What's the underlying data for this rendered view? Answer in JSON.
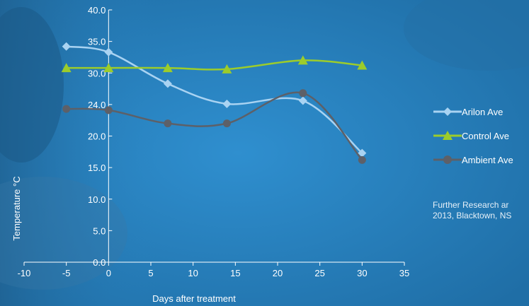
{
  "chart_data": {
    "type": "line",
    "title": "",
    "xlabel": "Days after treatment",
    "ylabel": "Temperature °C",
    "xlim": [
      -10,
      35
    ],
    "ylim": [
      0,
      40
    ],
    "xticks": [
      "-10",
      "-5",
      "0",
      "5",
      "10",
      "15",
      "20",
      "25",
      "30",
      "35"
    ],
    "yticks": [
      "0.0",
      "5.0",
      "10.0",
      "15.0",
      "20.0",
      "24.0",
      "30.0",
      "35.0",
      "40.0"
    ],
    "x": [
      -5,
      0,
      7,
      14,
      23,
      30
    ],
    "series": [
      {
        "name": "Arilon Ave",
        "marker": "diamond",
        "color": "#a9d3f2",
        "values": [
          34.2,
          33.3,
          28.3,
          25.1,
          25.6,
          17.3
        ]
      },
      {
        "name": "Control Ave",
        "marker": "triangle",
        "color": "#9ccc2b",
        "values": [
          30.8,
          30.8,
          30.8,
          30.6,
          32.0,
          31.2
        ]
      },
      {
        "name": "Ambient Ave",
        "marker": "circle",
        "color": "#5d6068",
        "values": [
          24.3,
          24.1,
          22.0,
          22.0,
          26.8,
          16.2
        ]
      }
    ],
    "legend_position": "right",
    "grid": false
  },
  "note": {
    "line1": "Further Research ar",
    "line2": "2013, Blacktown, NS"
  }
}
